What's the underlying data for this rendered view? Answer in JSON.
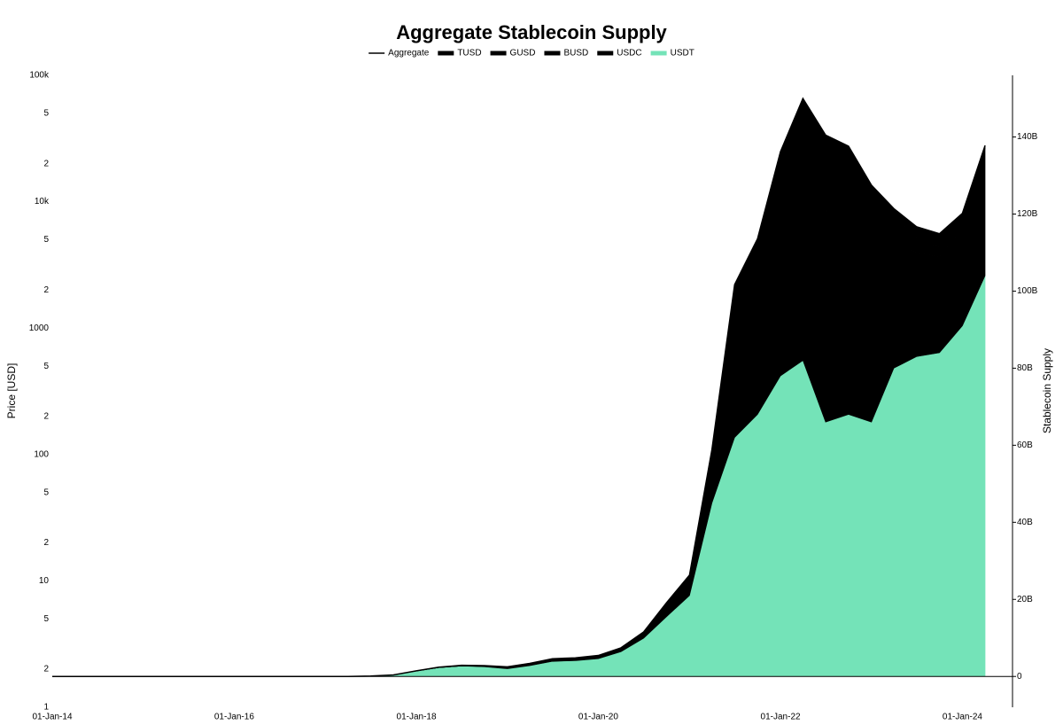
{
  "chart_data": {
    "type": "stacked-area",
    "title": "Aggregate Stablecoin Supply",
    "y_label": "Price [USD]",
    "y2_label": "Stablecoin Supply",
    "x": [
      "2014-01-01",
      "2014-04-01",
      "2014-07-01",
      "2014-10-01",
      "2015-01-01",
      "2015-04-01",
      "2015-07-01",
      "2015-10-01",
      "2016-01-01",
      "2016-04-01",
      "2016-07-01",
      "2016-10-01",
      "2017-01-01",
      "2017-04-01",
      "2017-07-01",
      "2017-10-01",
      "2018-01-01",
      "2018-04-01",
      "2018-07-01",
      "2018-10-01",
      "2019-01-01",
      "2019-04-01",
      "2019-07-01",
      "2019-10-01",
      "2020-01-01",
      "2020-04-01",
      "2020-07-01",
      "2020-10-01",
      "2021-01-01",
      "2021-04-01",
      "2021-07-01",
      "2021-10-01",
      "2022-01-01",
      "2022-04-01",
      "2022-07-01",
      "2022-10-01",
      "2023-01-01",
      "2023-04-01",
      "2023-07-01",
      "2023-10-01",
      "2024-01-01",
      "2024-04-01"
    ],
    "xlim": [
      "2014-01-01",
      "2024-07-20"
    ],
    "xticks": [
      {
        "value": "2014-01-01",
        "label": "01-Jan-14"
      },
      {
        "value": "2016-01-01",
        "label": "01-Jan-16"
      },
      {
        "value": "2018-01-01",
        "label": "01-Jan-18"
      },
      {
        "value": "2020-01-01",
        "label": "01-Jan-20"
      },
      {
        "value": "2022-01-01",
        "label": "01-Jan-22"
      },
      {
        "value": "2024-01-01",
        "label": "01-Jan-24"
      }
    ],
    "ylog": true,
    "ylim": [
      1,
      100000
    ],
    "yticks": [
      1,
      {
        "value": 2,
        "label": "2"
      },
      5,
      10,
      {
        "value": 20,
        "label": "2"
      },
      {
        "value": 50,
        "label": "5"
      },
      100,
      {
        "value": 200,
        "label": "2"
      },
      {
        "value": 500,
        "label": "5"
      },
      1000,
      {
        "value": 2000,
        "label": "2"
      },
      {
        "value": 5000,
        "label": "5"
      },
      {
        "value": 10000,
        "label": "10k"
      },
      {
        "value": 20000,
        "label": "2"
      },
      {
        "value": 50000,
        "label": "5"
      },
      {
        "value": 100000,
        "label": "100k"
      }
    ],
    "y2lim": [
      -8,
      156
    ],
    "y2ticks": [
      0,
      {
        "value": 20,
        "label": "20B"
      },
      {
        "value": 40,
        "label": "40B"
      },
      {
        "value": 60,
        "label": "60B"
      },
      {
        "value": 80,
        "label": "80B"
      },
      {
        "value": 100,
        "label": "100B"
      },
      {
        "value": 120,
        "label": "120B"
      },
      {
        "value": 140,
        "label": "140B"
      }
    ],
    "stacked": true,
    "grid": false,
    "series": [
      {
        "name": "Aggregate",
        "color": "#000000",
        "kind": "line",
        "axis": "y2",
        "values": [
          0,
          0,
          0,
          0,
          0,
          0,
          0,
          0,
          0,
          0,
          0,
          0,
          0,
          0,
          0.1,
          0.4,
          1.45,
          2.4,
          2.9,
          2.81,
          2.5,
          3.4,
          4.6,
          4.82,
          5.45,
          7.43,
          11.55,
          19.15,
          26.32,
          58.9,
          101.7,
          113.6,
          136.2,
          150,
          140.5,
          137.6,
          127.5,
          121.4,
          116.7,
          114.9,
          120.2,
          137.8
        ]
      },
      {
        "name": "TUSD",
        "color": "#000000",
        "kind": "area",
        "axis": "y2",
        "values": [
          0,
          0,
          0,
          0,
          0,
          0,
          0,
          0,
          0,
          0,
          0,
          0,
          0,
          0,
          0,
          0,
          0.05,
          0.1,
          0.2,
          0.2,
          0.2,
          0.25,
          0.2,
          0.15,
          0.1,
          0.13,
          0.3,
          0.4,
          0.4,
          0.5,
          1.5,
          1.3,
          1.3,
          1,
          1,
          1,
          1,
          2,
          2.8,
          3,
          2.5,
          0.5
        ]
      },
      {
        "name": "GUSD",
        "color": "#000000",
        "kind": "area",
        "axis": "y2",
        "values": [
          0,
          0,
          0,
          0,
          0,
          0,
          0,
          0,
          0,
          0,
          0,
          0,
          0,
          0,
          0,
          0,
          0,
          0,
          0,
          0.01,
          0.05,
          0.05,
          0.05,
          0.05,
          0.05,
          0.05,
          0.05,
          0.05,
          0.02,
          0.1,
          0.2,
          0.3,
          0.4,
          0.5,
          0.5,
          0.6,
          0.5,
          0.4,
          0.4,
          0.4,
          0.3,
          0.2
        ]
      },
      {
        "name": "BUSD",
        "color": "#000000",
        "kind": "area",
        "axis": "y2",
        "values": [
          0,
          0,
          0,
          0,
          0,
          0,
          0,
          0,
          0,
          0,
          0,
          0,
          0,
          0,
          0,
          0,
          0,
          0,
          0,
          0,
          0,
          0,
          0,
          0.02,
          0.2,
          0.15,
          0.2,
          0.5,
          0.9,
          2.3,
          11,
          12,
          14.5,
          17.5,
          18,
          22,
          16,
          6,
          3.5,
          2.5,
          1.4,
          0.1
        ]
      },
      {
        "name": "USDC",
        "color": "#000000",
        "kind": "area",
        "axis": "y2",
        "values": [
          0,
          0,
          0,
          0,
          0,
          0,
          0,
          0,
          0,
          0,
          0,
          0,
          0,
          0,
          0,
          0,
          0,
          0,
          0,
          0.1,
          0.25,
          0.3,
          0.45,
          0.5,
          0.5,
          0.7,
          1.1,
          2.7,
          4,
          11,
          27,
          32,
          42,
          49,
          55,
          46,
          44,
          33,
          27,
          25,
          25,
          33
        ]
      },
      {
        "name": "USDT",
        "color": "#74e3b8",
        "kind": "area",
        "axis": "y2",
        "values": [
          0,
          0,
          0,
          0,
          0,
          0,
          0,
          0,
          0,
          0,
          0,
          0,
          0,
          0,
          0.1,
          0.4,
          1.4,
          2.3,
          2.7,
          2.5,
          2.0,
          2.8,
          3.9,
          4.1,
          4.6,
          6.4,
          9.9,
          15.5,
          21,
          45,
          62,
          68,
          78,
          82,
          66,
          68,
          66,
          80,
          83,
          84,
          91,
          104
        ]
      }
    ]
  }
}
